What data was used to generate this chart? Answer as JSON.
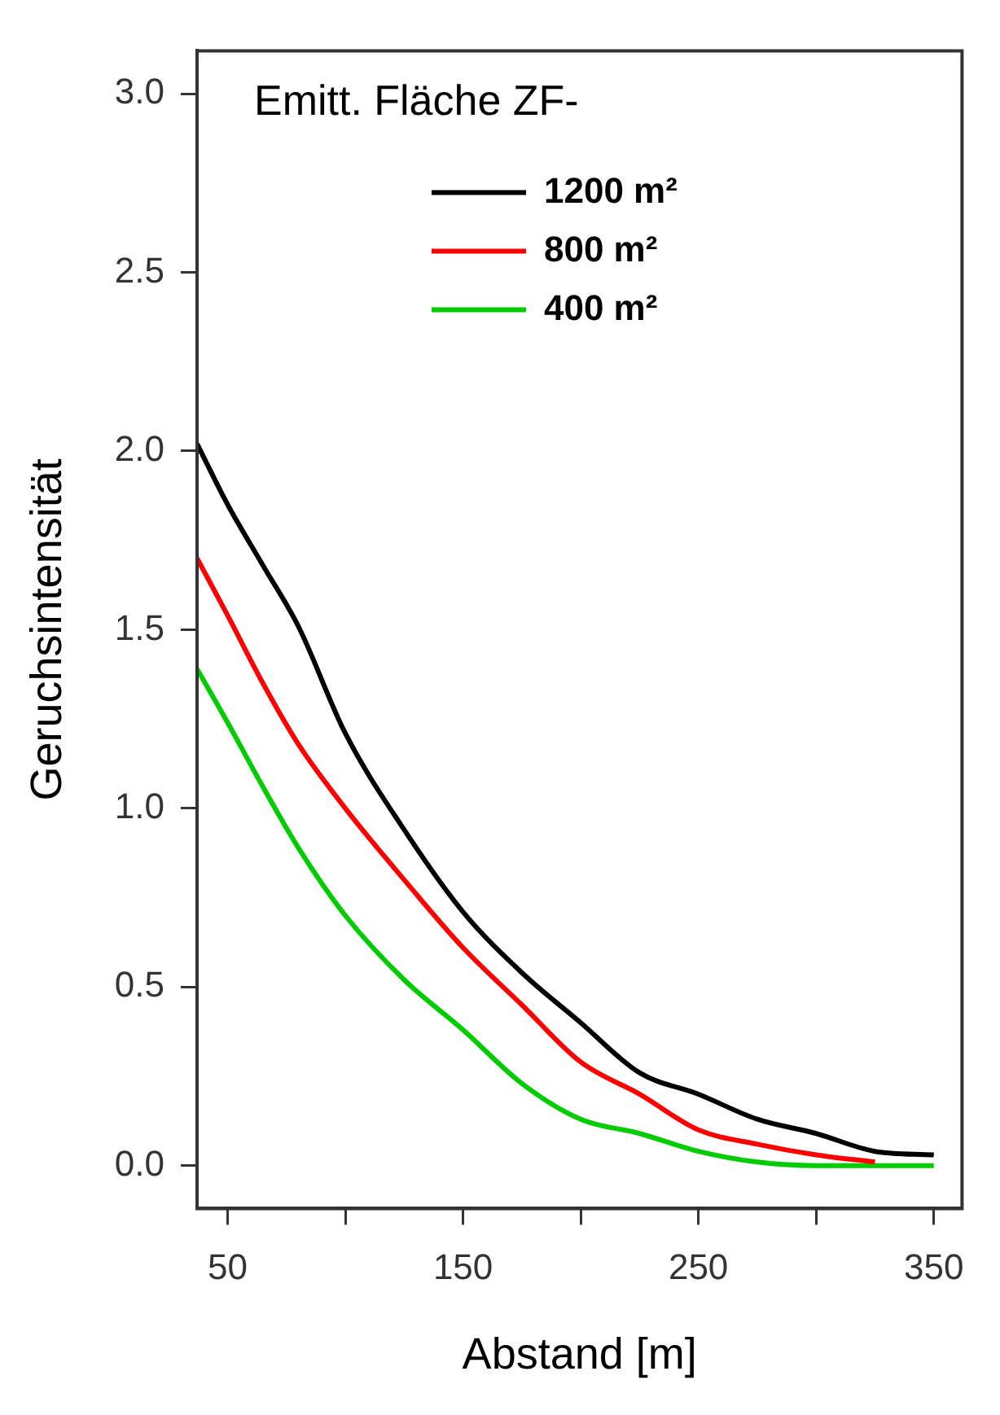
{
  "chart_data": {
    "type": "line",
    "xlabel": "Abstand [m]",
    "ylabel": "Geruchsintensität",
    "legend_title": "Emitt. Fläche ZF-",
    "legend": "top",
    "grid": false,
    "x": [
      37,
      50,
      65,
      80,
      100,
      125,
      150,
      175,
      200,
      225,
      250,
      275,
      300,
      325,
      350
    ],
    "xlim": [
      37,
      362
    ],
    "xticks": [
      50,
      {
        "value": 100,
        "label": null
      },
      150,
      {
        "value": 200,
        "label": null
      },
      250,
      {
        "value": 300,
        "label": null
      },
      350
    ],
    "ylim": [
      -0.12,
      3.12
    ],
    "yticks": [
      {
        "value": 0,
        "label": "0.0"
      },
      0.5,
      {
        "value": 1,
        "label": "1.0"
      },
      1.5,
      {
        "value": 2,
        "label": "2.0"
      },
      2.5,
      {
        "value": 3,
        "label": "3.0"
      }
    ],
    "series": [
      {
        "name": "1200 m²",
        "color": "#000000",
        "values": [
          2.02,
          1.85,
          1.68,
          1.51,
          1.21,
          0.94,
          0.71,
          0.54,
          0.4,
          0.26,
          0.2,
          0.13,
          0.09,
          0.04,
          0.03
        ]
      },
      {
        "name": "800 m²",
        "color": "#ff0000",
        "x": [
          37,
          50,
          65,
          80,
          100,
          125,
          150,
          175,
          200,
          225,
          250,
          275,
          300,
          325
        ],
        "values": [
          1.7,
          1.54,
          1.35,
          1.18,
          1.0,
          0.8,
          0.61,
          0.45,
          0.29,
          0.2,
          0.1,
          0.06,
          0.03,
          0.01
        ]
      },
      {
        "name": "400 m²",
        "color": "#00cc00",
        "values": [
          1.39,
          1.24,
          1.06,
          0.89,
          0.7,
          0.52,
          0.38,
          0.23,
          0.13,
          0.09,
          0.04,
          0.01,
          0,
          0,
          0
        ]
      }
    ]
  }
}
